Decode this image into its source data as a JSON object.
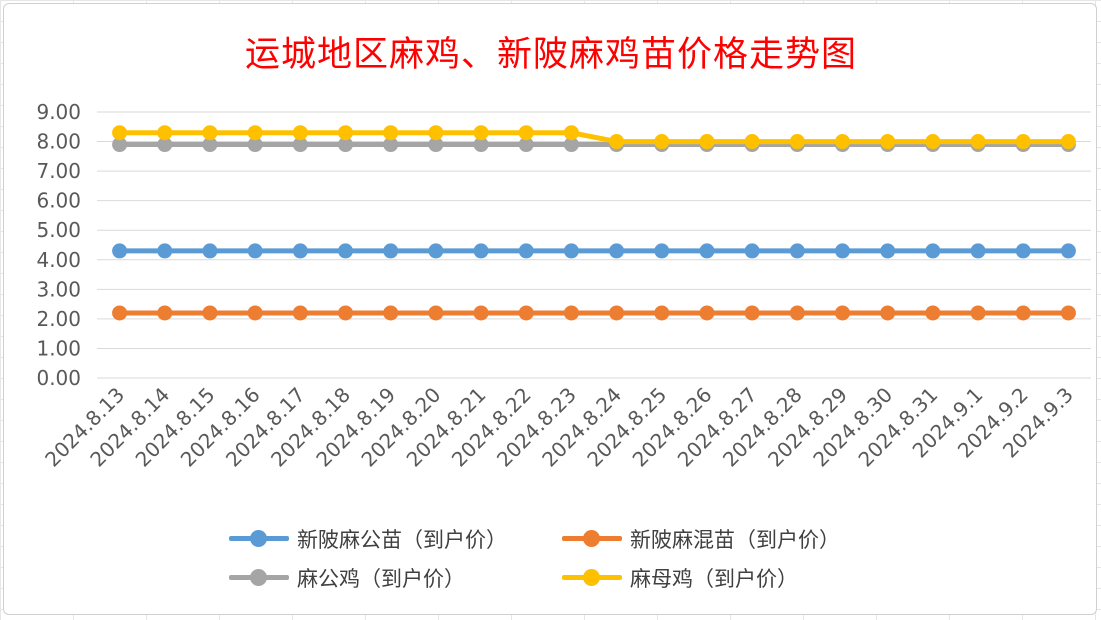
{
  "chart_data": {
    "type": "line",
    "title": "运城地区麻鸡、新陂麻鸡苗价格走势图",
    "categories": [
      "2024.8.13",
      "2024.8.14",
      "2024.8.15",
      "2024.8.16",
      "2024.8.17",
      "2024.8.18",
      "2024.8.19",
      "2024.8.20",
      "2024.8.21",
      "2024.8.22",
      "2024.8.23",
      "2024.8.24",
      "2024.8.25",
      "2024.8.26",
      "2024.8.27",
      "2024.8.28",
      "2024.8.29",
      "2024.8.30",
      "2024.8.31",
      "2024.9.1",
      "2024.9.2",
      "2024.9.3"
    ],
    "yticks": [
      "0.00",
      "1.00",
      "2.00",
      "3.00",
      "4.00",
      "5.00",
      "6.00",
      "7.00",
      "8.00",
      "9.00"
    ],
    "ylim": [
      0,
      9
    ],
    "grid": true,
    "legend_position": "bottom",
    "series": [
      {
        "name": "新陂麻公苗（到户价）",
        "color": "#5b9bd5",
        "values": [
          4.3,
          4.3,
          4.3,
          4.3,
          4.3,
          4.3,
          4.3,
          4.3,
          4.3,
          4.3,
          4.3,
          4.3,
          4.3,
          4.3,
          4.3,
          4.3,
          4.3,
          4.3,
          4.3,
          4.3,
          4.3,
          4.3
        ]
      },
      {
        "name": "新陂麻混苗（到户价）",
        "color": "#ed7d31",
        "values": [
          2.2,
          2.2,
          2.2,
          2.2,
          2.2,
          2.2,
          2.2,
          2.2,
          2.2,
          2.2,
          2.2,
          2.2,
          2.2,
          2.2,
          2.2,
          2.2,
          2.2,
          2.2,
          2.2,
          2.2,
          2.2,
          2.2
        ]
      },
      {
        "name": "麻公鸡（到户价）",
        "color": "#a5a5a5",
        "values": [
          7.9,
          7.9,
          7.9,
          7.9,
          7.9,
          7.9,
          7.9,
          7.9,
          7.9,
          7.9,
          7.9,
          7.9,
          7.9,
          7.9,
          7.9,
          7.9,
          7.9,
          7.9,
          7.9,
          7.9,
          7.9,
          7.9
        ]
      },
      {
        "name": "麻母鸡（到户价）",
        "color": "#ffc000",
        "values": [
          8.3,
          8.3,
          8.3,
          8.3,
          8.3,
          8.3,
          8.3,
          8.3,
          8.3,
          8.3,
          8.3,
          8.0,
          8.0,
          8.0,
          8.0,
          8.0,
          8.0,
          8.0,
          8.0,
          8.0,
          8.0,
          8.0
        ]
      }
    ]
  }
}
